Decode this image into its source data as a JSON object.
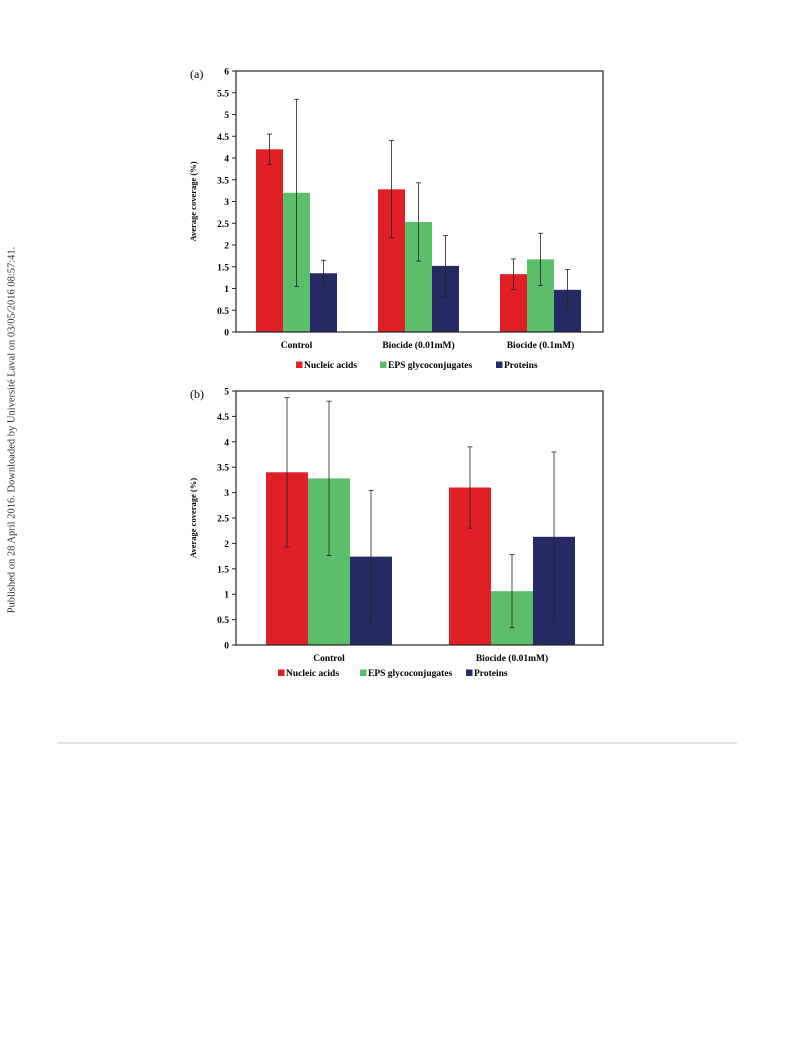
{
  "side_note": "Published on 28 April 2016. Downloaded by Université Laval on 03/05/2016 08:57:41.",
  "chart_data": [
    {
      "type": "bar",
      "panel_label": "(a)",
      "ylabel": "Average coverage (%)",
      "ylim": [
        0,
        6
      ],
      "yticks": [
        "0",
        "0.5",
        "1",
        "1.5",
        "2",
        "2.5",
        "3",
        "3.5",
        "4",
        "4.5",
        "5",
        "5.5",
        "6"
      ],
      "categories": [
        "Control",
        "Biocide (0.01mM)",
        "Biocide (0.1mM)"
      ],
      "series": [
        {
          "name": "Nucleic acids",
          "color": "#e02026",
          "values": [
            4.2,
            3.28,
            1.33
          ],
          "errors": [
            0.35,
            1.12,
            0.35
          ]
        },
        {
          "name": "EPS glycoconjugates",
          "color": "#5cbe6b",
          "values": [
            3.2,
            2.53,
            1.67
          ],
          "errors": [
            2.15,
            0.9,
            0.6
          ]
        },
        {
          "name": "Proteins",
          "color": "#252a62",
          "values": [
            1.35,
            1.52,
            0.97
          ],
          "errors": [
            0.3,
            0.7,
            0.47
          ]
        }
      ],
      "legend_position": "bottom"
    },
    {
      "type": "bar",
      "panel_label": "(b)",
      "ylabel": "Average coverage (%)",
      "ylim": [
        0,
        5
      ],
      "yticks": [
        "0",
        "0.5",
        "1",
        "1.5",
        "2",
        "2.5",
        "3",
        "3.5",
        "4",
        "4.5",
        "5"
      ],
      "categories": [
        "Control",
        "Biocide (0.01mM)"
      ],
      "series": [
        {
          "name": "Nucleic acids",
          "color": "#e02026",
          "values": [
            3.4,
            3.1
          ],
          "errors": [
            1.47,
            0.8
          ]
        },
        {
          "name": "EPS glycoconjugates",
          "color": "#5cbe6b",
          "values": [
            3.28,
            1.06
          ],
          "errors": [
            1.52,
            0.72
          ]
        },
        {
          "name": "Proteins",
          "color": "#252a62",
          "values": [
            1.74,
            2.13
          ],
          "errors": [
            1.3,
            1.67
          ]
        }
      ],
      "legend_position": "bottom"
    }
  ]
}
